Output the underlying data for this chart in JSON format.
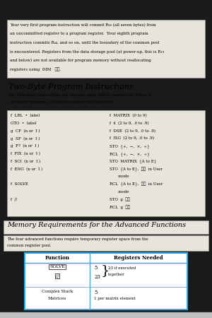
{
  "bg_color": "#1a1a1a",
  "page_bg": "#e8e4dc",
  "border_color": "#999999",
  "top_text_lines": [
    "Your very first program instruction will commit R₆₅ (all seven bytes) from",
    "an uncommitted register to a program register.  Your eighth program",
    "instruction commits R₆₄, and so on, until the boundary of the common pool",
    "is encountered. Registers from the data storage pool (at power-up, this is R₁₉",
    "and below) are not available for program memory without reallocating",
    "registers using  DIM   ℑℓ."
  ],
  "section_title": "Two-Byte Program Instructions",
  "section_body_lines": [
    "The following instructions are the only ones which require two bytes of",
    "calculator memory. (All others require only one byte.)"
  ],
  "left_col": [
    [
      "f",
      "LBL",
      "•",
      "label"
    ],
    [
      "GTO",
      "•",
      "label"
    ],
    [
      "g",
      "CF",
      "(n or I)"
    ],
    [
      "g",
      "SF",
      "(n or I)"
    ],
    [
      "g",
      "F?",
      "(n or I)"
    ],
    [
      "f",
      "FIX",
      "(n or I)"
    ],
    [
      "f",
      "SCI",
      "(n or I)"
    ],
    [
      "f",
      "ENG",
      "(n or I)"
    ],
    [],
    [
      "f",
      "SOLVE"
    ],
    [],
    [
      "f",
      "//"
    ]
  ],
  "right_col": [
    [
      "f",
      "MATRIX",
      "(0 to 9)"
    ],
    [
      "f",
      "x̂",
      "(2 to 9, .0 to .9)"
    ],
    [
      "f",
      "DSE",
      "(2 to 9, .0 to .9)"
    ],
    [
      "f",
      "ISG",
      "(2 to 9, .0 to .9)"
    ],
    [
      "STO",
      "{+, −, ×, ÷}"
    ],
    [
      "RCL",
      "{+, −, ×, ÷}"
    ],
    [
      "STO",
      "MATRIX",
      "{A to E}"
    ],
    [
      "STO",
      "{A to E},",
      "rιι in User"
    ],
    [
      "mode"
    ],
    [
      "RCL",
      "{A to E},",
      "rιι in User"
    ],
    [
      "mode"
    ],
    [
      "STO",
      "g",
      "rιι"
    ],
    [
      "RCL",
      "g",
      "rιι"
    ]
  ],
  "left_col_text": [
    "f  LBL  •  label",
    "GTO  •  label",
    "g  CF  (n or  I )",
    "g  SF  (n or  I )",
    "g  F?  (n or  I )",
    "f  FIX  (n or  I )",
    "f  SCI  (n or  I )",
    "f  ENG  (n or  I )",
    "",
    "f  SOLVE",
    "",
    "f  ∕∕"
  ],
  "right_col_text": [
    "f  MATRIX  (0 to 9)",
    "f  x̂  (2 to 9, .0 to .9)",
    "f  DSE  (2 to 9, .0 to .9)",
    "f  ISG  (2 to 9, .0 to .9)",
    "STO  {+,  −,  ×,  ÷}",
    "RCL  {+,  −,  ×,  ÷}",
    "STO  MATRIX  {A to E}",
    "STO  {A to E},  ℑℓ  in User",
    "       mode",
    "RCL  {A to E},  ℑℓ  in User",
    "       mode",
    "STO  g  ℑℓ",
    "RCL  g  ℑℓ"
  ],
  "mem_title": "Memory Requirements for the Advanced Functions",
  "mem_body_lines": [
    "The four advanced functions require temporary register space from the",
    "common register pool."
  ],
  "table_border": "#2ab0e8",
  "tbl_col1_hdr": "Function",
  "tbl_col2_hdr": "Registers Needed",
  "tbl_r1_c1a": "SOLVE",
  "tbl_r1_c1b": "∕∕",
  "tbl_r1_nums": "5\n23",
  "tbl_r1_note": "23 if executed\ntogether",
  "tbl_r2_c1a": "Complex Stack",
  "tbl_r2_c1b": "Matrices",
  "tbl_r2_c2a": "5",
  "tbl_r2_c2b": "1 per matrix element"
}
